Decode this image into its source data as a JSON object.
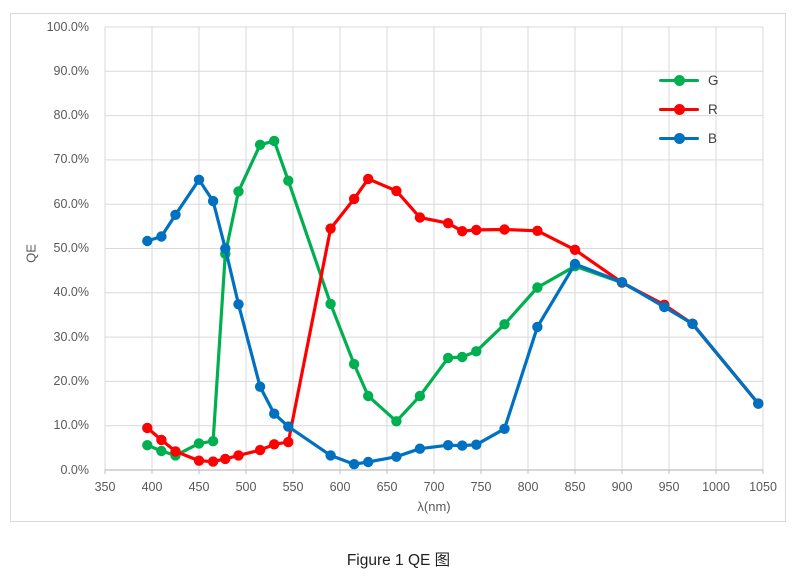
{
  "caption": "Figure 1 QE 图",
  "chart_data": {
    "type": "line",
    "title": "Figure 1 QE 图",
    "xlabel": "λ(nm)",
    "ylabel": "QE",
    "xlim": [
      350,
      1050
    ],
    "ylim": [
      0,
      100
    ],
    "grid": true,
    "legend_position": "top-right",
    "x_ticks": [
      350,
      400,
      450,
      500,
      550,
      600,
      650,
      700,
      750,
      800,
      850,
      900,
      950,
      1000,
      1050
    ],
    "y_tick_labels": [
      "0.0%",
      "10.0%",
      "20.0%",
      "30.0%",
      "40.0%",
      "50.0%",
      "60.0%",
      "70.0%",
      "80.0%",
      "90.0%",
      "100.0%"
    ],
    "x": [
      395,
      410,
      425,
      450,
      465,
      478,
      492,
      515,
      530,
      545,
      590,
      615,
      630,
      660,
      685,
      715,
      730,
      745,
      775,
      810,
      850,
      900,
      945,
      975,
      1045
    ],
    "series": [
      {
        "name": "G",
        "color": "#00B050",
        "values": [
          5.6,
          4.3,
          3.3,
          6.0,
          6.5,
          48.8,
          62.9,
          73.4,
          74.3,
          65.3,
          37.5,
          23.9,
          16.7,
          11.0,
          16.7,
          25.3,
          25.5,
          26.8,
          32.9,
          41.2,
          46.0,
          42.3,
          37.0,
          33.0,
          15.0
        ]
      },
      {
        "name": "R",
        "color": "#FF0000",
        "values": [
          9.5,
          6.8,
          4.2,
          2.1,
          1.9,
          2.5,
          3.3,
          4.5,
          5.8,
          6.3,
          54.5,
          61.2,
          65.7,
          63.0,
          57.0,
          55.7,
          53.9,
          54.2,
          54.3,
          54.0,
          49.7,
          42.3,
          37.3,
          33.0,
          15.0
        ]
      },
      {
        "name": "B",
        "color": "#0070C0",
        "values": [
          51.7,
          52.7,
          57.6,
          65.5,
          60.7,
          50.0,
          37.4,
          18.8,
          12.7,
          9.8,
          3.3,
          1.3,
          1.8,
          3.0,
          4.8,
          5.6,
          5.5,
          5.7,
          9.3,
          32.3,
          46.5,
          42.4,
          36.8,
          33.0,
          15.0
        ]
      }
    ],
    "axis_color": "#BFBFBF",
    "gridline_color": "#D9D9D9",
    "label_color": "#595959"
  }
}
